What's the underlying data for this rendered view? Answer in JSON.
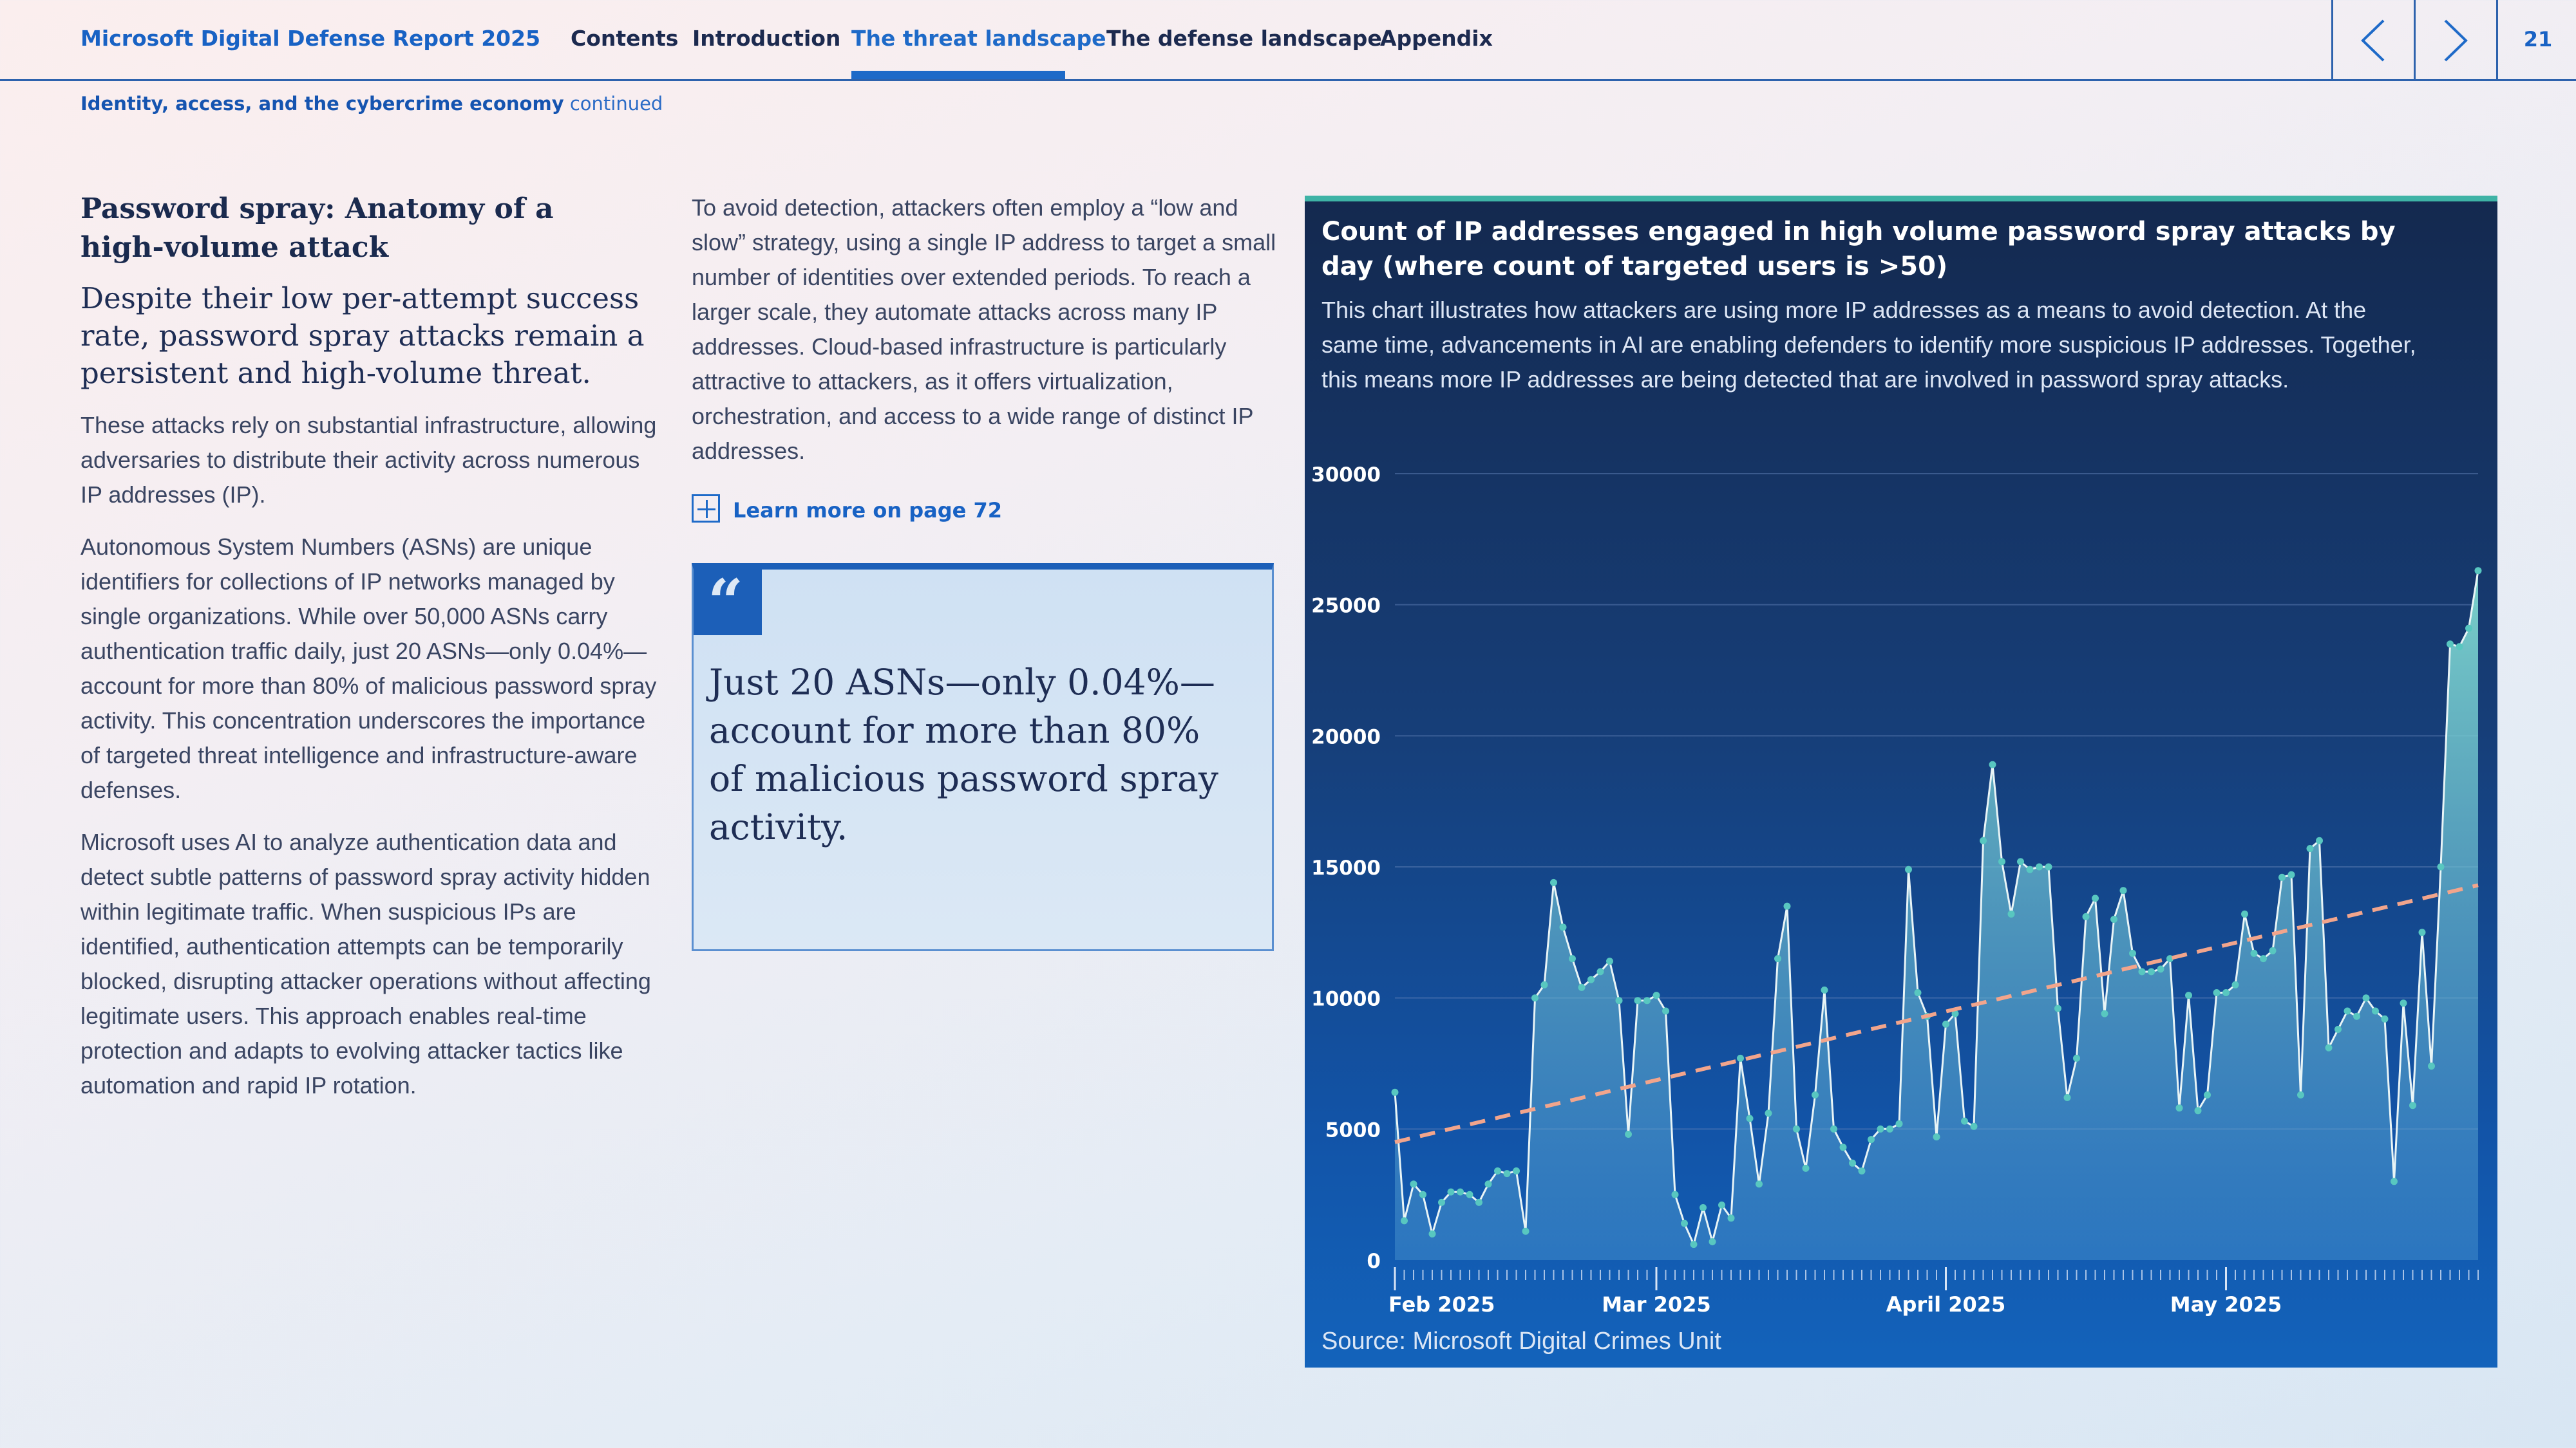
{
  "header": {
    "brand": "Microsoft Digital Defense Report 2025",
    "nav": [
      "Contents",
      "Introduction",
      "The threat landscape",
      "The defense landscape",
      "Appendix"
    ],
    "active_index": 2,
    "page_number": "21",
    "prev_icon": "chevron-left-icon",
    "next_icon": "chevron-right-icon"
  },
  "breadcrumb": {
    "section": "Identity, access, and the cybercrime economy",
    "suffix": "continued"
  },
  "article": {
    "heading": "Password spray: Anatomy of a high-volume attack",
    "lede": "Despite their low per-attempt success rate, password spray attacks remain a persistent and high-volume threat.",
    "p1": "These attacks rely on substantial infrastructure, allowing adversaries to distribute their activity across numerous IP addresses (IP).",
    "p2": "Autonomous System Numbers (ASNs) are unique identifiers for collections of IP networks managed by single organizations. While over 50,000 ASNs carry authentication traffic daily, just 20 ASNs—only 0.04%—account for more than 80% of malicious password spray activity. This concentration underscores the importance of targeted threat intelligence and infrastructure-aware defenses.",
    "p3": "Microsoft uses AI to analyze authentication data and detect subtle patterns of password spray activity hidden within legitimate traffic. When suspicious IPs are identified, authentication attempts can be temporarily blocked, disrupting attacker operations without affecting legitimate users. This approach enables real-time protection and adapts to evolving attacker tactics like automation and rapid IP rotation.",
    "p4": "To avoid detection, attackers often employ a “low and slow” strategy, using a single IP address to target a small number of identities over extended periods. To reach a larger scale, they automate attacks across many IP addresses. Cloud-based infrastructure is particularly attractive to attackers, as it offers virtualization, orchestration, and access to a wide range of distinct IP addresses.",
    "learn_more": "Learn more on page 72",
    "quote": "Just 20 ASNs—only 0.04%—account for more than 80% of malicious password spray activity."
  },
  "chart_panel": {
    "title": "Count of IP addresses engaged in high volume password spray attacks by day (where count of targeted users is >50)",
    "description": "This chart illustrates how attackers are using more IP addresses as a means to avoid detection. At the same time, advancements in AI are enabling defenders to identify more suspicious IP addresses. Together, this means more IP addresses are being detected that are involved in password spray attacks.",
    "source": "Source: Microsoft Digital Crimes Unit"
  },
  "chart_data": {
    "type": "area",
    "x_start": "2025-02-01",
    "x_ticks": [
      {
        "label": "Feb 2025",
        "index": 0
      },
      {
        "label": "Mar 2025",
        "index": 28
      },
      {
        "label": "April 2025",
        "index": 59
      },
      {
        "label": "May 2025",
        "index": 89
      }
    ],
    "y_ticks": [
      0,
      5000,
      10000,
      15000,
      20000,
      25000,
      30000
    ],
    "ylim": [
      0,
      30000
    ],
    "grid": true,
    "series": [
      {
        "name": "",
        "color": "#58c7c0",
        "values": [
          6400,
          1500,
          2900,
          2500,
          1000,
          2200,
          2600,
          2600,
          2500,
          2200,
          2900,
          3400,
          3300,
          3400,
          1100,
          10000,
          10500,
          14400,
          12700,
          11500,
          10400,
          10700,
          11000,
          11400,
          9900,
          4800,
          9900,
          9900,
          10100,
          9500,
          2500,
          1400,
          600,
          2000,
          700,
          2100,
          1600,
          7700,
          5400,
          2900,
          5600,
          11500,
          13500,
          5000,
          3500,
          6300,
          10300,
          5000,
          4300,
          3700,
          3400,
          4600,
          5000,
          5000,
          5200,
          14900,
          10200,
          9300,
          4700,
          9000,
          9400,
          5300,
          5100,
          16000,
          18900,
          15200,
          13200,
          15200,
          14900,
          15000,
          15000,
          9600,
          6200,
          7700,
          13100,
          13800,
          9400,
          13000,
          14100,
          11700,
          11000,
          11000,
          11100,
          11500,
          5800,
          10100,
          5700,
          6300,
          10200,
          10200,
          10500,
          13200,
          11700,
          11500,
          11800,
          14600,
          14700,
          6300,
          15700,
          16000,
          8100,
          8800,
          9500,
          9300,
          10000,
          9500,
          9200,
          3000,
          9800,
          5900,
          12500,
          7400,
          15000,
          23500,
          23400,
          24100,
          26300
        ],
        "trend": [
          4500,
          14300
        ]
      }
    ]
  }
}
